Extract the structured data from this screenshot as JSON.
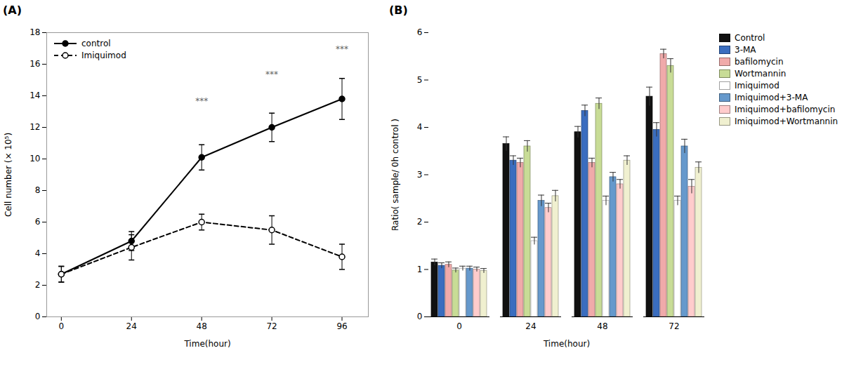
{
  "chart_data": [
    {
      "type": "line",
      "title": "(A)",
      "xlabel": "Time(hour)",
      "ylabel": "Cell number (× 10⁵)",
      "x": [
        0,
        24,
        48,
        72,
        96
      ],
      "xlim": [
        -5,
        105
      ],
      "xticks": [
        0,
        24,
        48,
        72,
        96
      ],
      "ylim": [
        0,
        18
      ],
      "yticks": [
        0,
        2,
        4,
        6,
        8,
        10,
        12,
        14,
        16,
        18
      ],
      "grid": false,
      "legend": "upper left",
      "series": [
        {
          "name": "control",
          "color": "#000000",
          "line_style": "solid",
          "marker": "filled_circle",
          "values": [
            2.7,
            4.8,
            10.1,
            12.0,
            13.8
          ],
          "errors": [
            0.5,
            0.6,
            0.8,
            0.9,
            1.3
          ]
        },
        {
          "name": "Imiquimod",
          "color": "#000000",
          "line_style": "dashed",
          "marker": "open_circle",
          "values": [
            2.7,
            4.4,
            6.0,
            5.5,
            3.8
          ],
          "errors": [
            0.5,
            0.8,
            0.5,
            0.9,
            0.8
          ]
        }
      ],
      "annotations": [
        {
          "x": 48,
          "y": 13.5,
          "text": "***",
          "color": "#666666"
        },
        {
          "x": 72,
          "y": 15.2,
          "text": "***",
          "color": "#666666"
        },
        {
          "x": 96,
          "y": 16.8,
          "text": "***",
          "color": "#666666"
        }
      ]
    },
    {
      "type": "bar",
      "title": "(B)",
      "xlabel": "Time(hour)",
      "ylabel": "Ratio( sample/ 0h control )",
      "categories": [
        "0",
        "24",
        "48",
        "72"
      ],
      "ylim": [
        0,
        6
      ],
      "yticks": [
        0,
        1,
        2,
        3,
        4,
        5,
        6
      ],
      "grid": false,
      "legend": "right",
      "series": [
        {
          "name": "Control",
          "color": "#111111",
          "values": [
            1.15,
            3.65,
            3.9,
            4.65
          ],
          "errors": [
            0.07,
            0.15,
            0.12,
            0.2
          ]
        },
        {
          "name": "3-MA",
          "color": "#3a6dbf",
          "values": [
            1.08,
            3.3,
            4.35,
            3.95
          ],
          "errors": [
            0.06,
            0.1,
            0.12,
            0.15
          ]
        },
        {
          "name": "bafilomycin",
          "color": "#f0aaaa",
          "values": [
            1.1,
            3.25,
            3.25,
            5.55
          ],
          "errors": [
            0.06,
            0.1,
            0.1,
            0.1
          ]
        },
        {
          "name": "Wortmannin",
          "color": "#c8dc96",
          "values": [
            0.98,
            3.6,
            4.5,
            5.3
          ],
          "errors": [
            0.05,
            0.12,
            0.12,
            0.15
          ]
        },
        {
          "name": "Imiquimod",
          "color": "#ffffff",
          "values": [
            1.02,
            1.6,
            2.45,
            2.45
          ],
          "errors": [
            0.05,
            0.08,
            0.1,
            0.1
          ]
        },
        {
          "name": "Imiquimod+3-MA",
          "color": "#6699cc",
          "values": [
            1.02,
            2.45,
            2.95,
            3.6
          ],
          "errors": [
            0.05,
            0.12,
            0.1,
            0.15
          ]
        },
        {
          "name": "Imiquimod+bafilomycin",
          "color": "#ffcccc",
          "values": [
            1.0,
            2.3,
            2.8,
            2.75
          ],
          "errors": [
            0.05,
            0.1,
            0.1,
            0.15
          ]
        },
        {
          "name": "Imiquimod+Wortmannin",
          "color": "#f0f0d0",
          "values": [
            0.97,
            2.55,
            3.3,
            3.15
          ],
          "errors": [
            0.05,
            0.12,
            0.1,
            0.12
          ]
        }
      ]
    }
  ]
}
